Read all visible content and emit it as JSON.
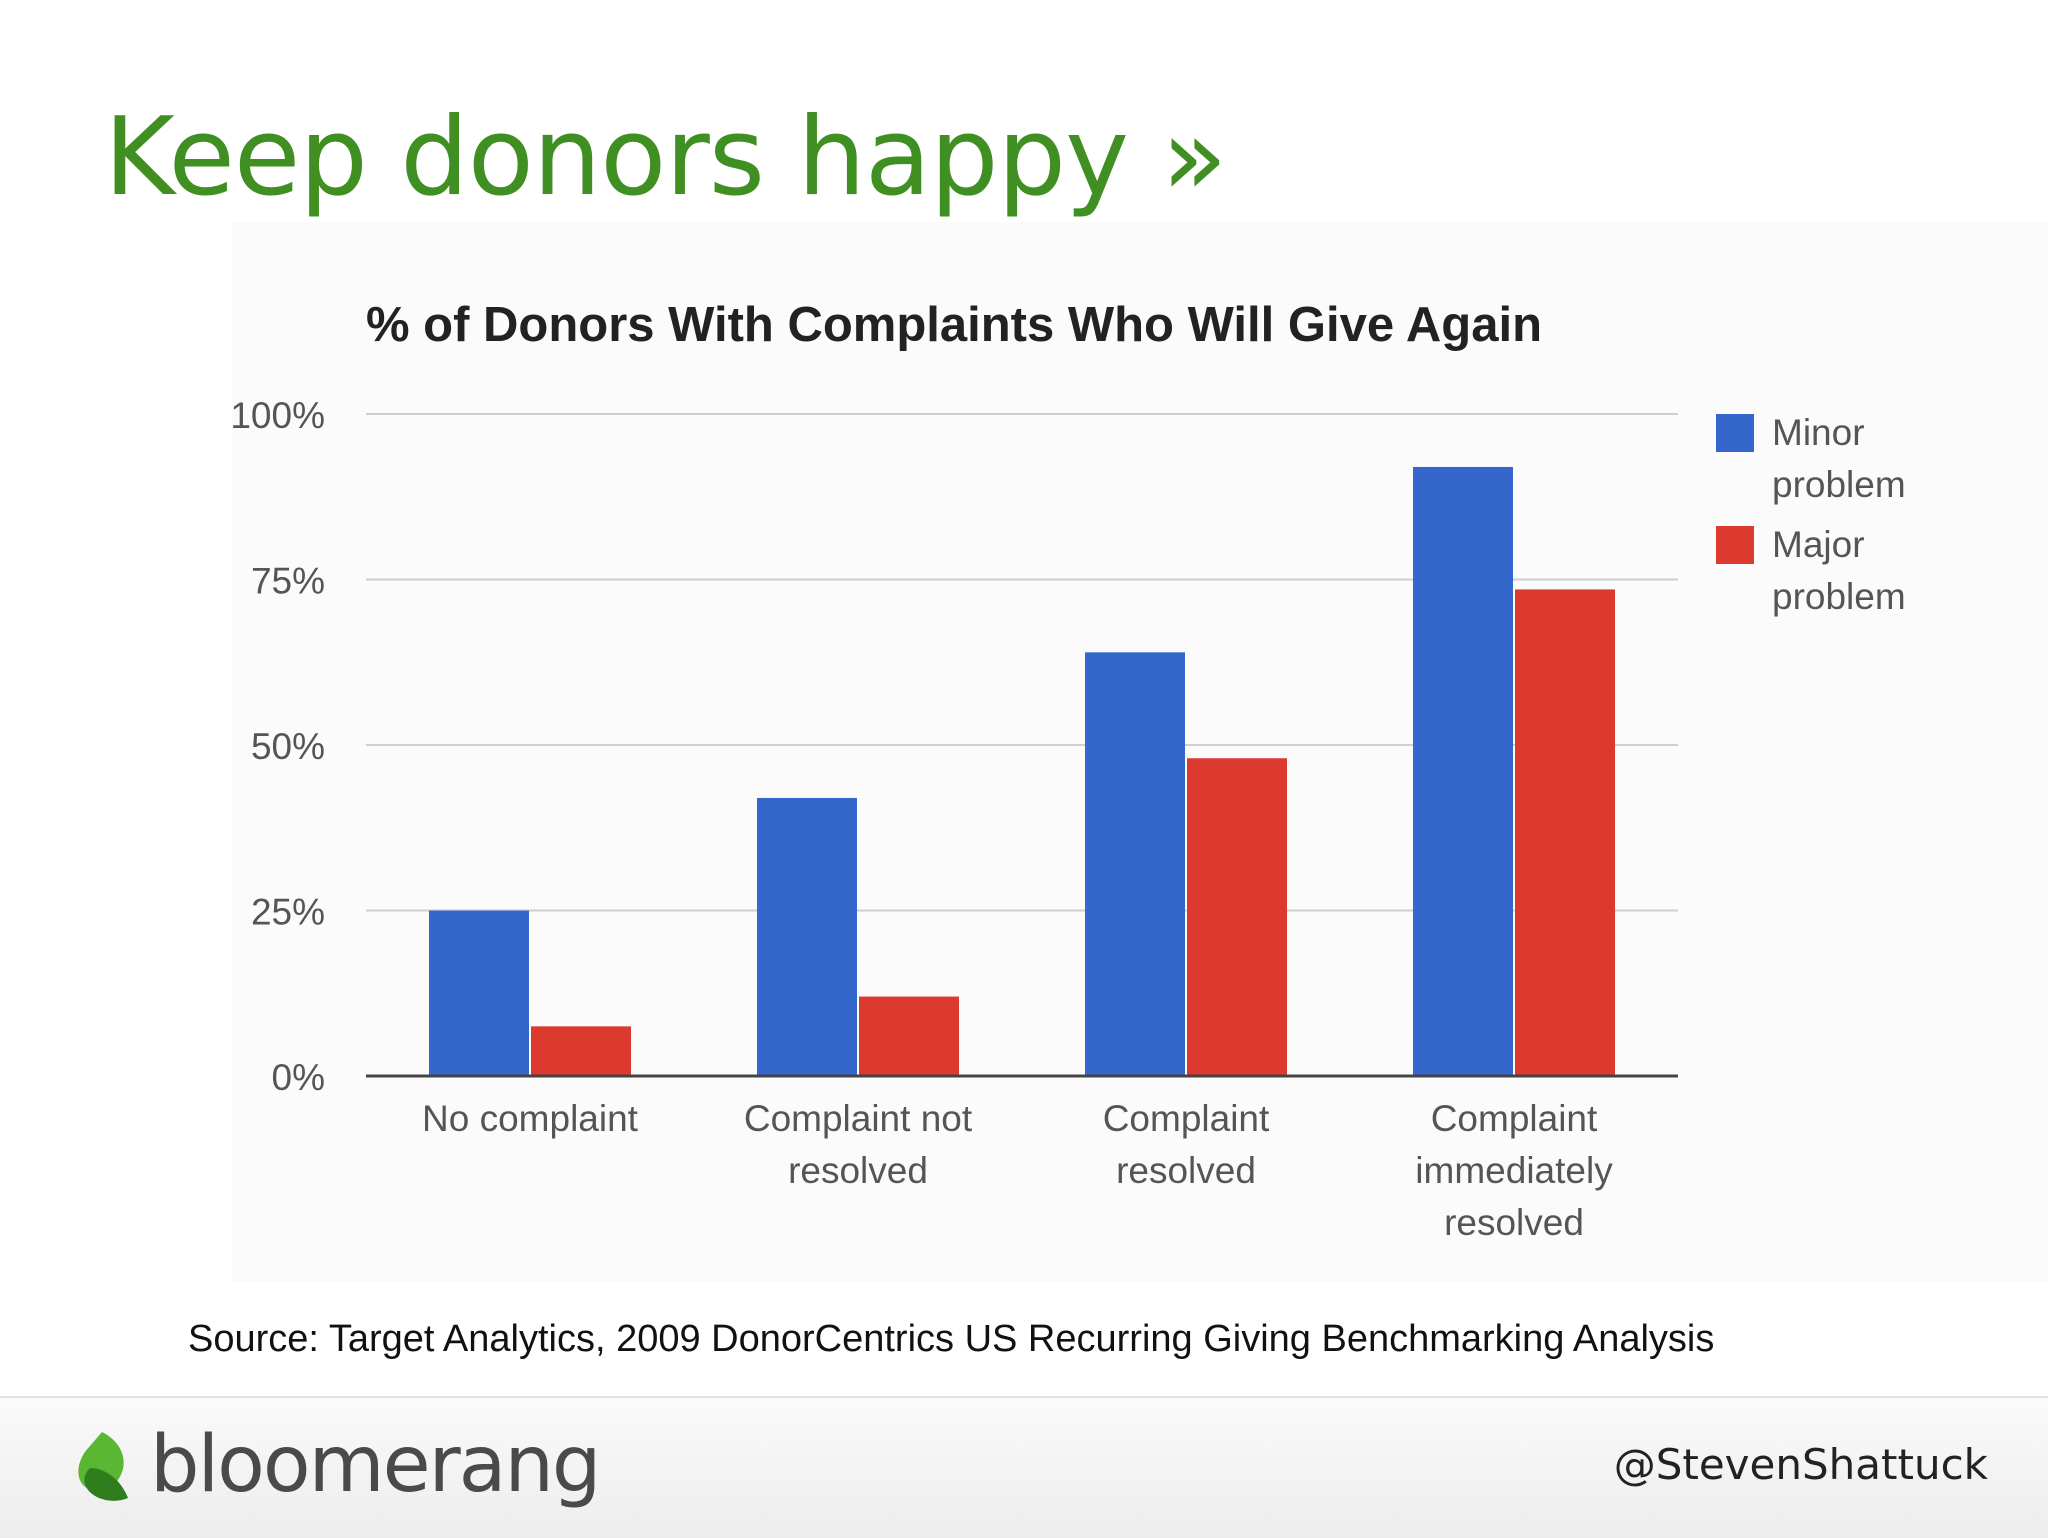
{
  "slide": {
    "title": "Keep donors happy »",
    "source": "Source: Target Analytics, 2009 DonorCentrics US Recurring Giving Benchmarking Analysis",
    "brand": "bloomerang",
    "handle": "@StevenShattuck"
  },
  "colors": {
    "title": "#3f8f22",
    "minor": "#3466cc",
    "major": "#dc3a2f"
  },
  "chart_data": {
    "type": "bar",
    "title": "% of Donors With Complaints Who Will Give Again",
    "categories": [
      [
        "No complaint"
      ],
      [
        "Complaint not",
        "resolved"
      ],
      [
        "Complaint",
        "resolved"
      ],
      [
        "Complaint",
        "immediately",
        "resolved"
      ]
    ],
    "series": [
      {
        "name": "Minor problem",
        "legend_lines": [
          "Minor",
          "problem"
        ],
        "color": "#3466cc",
        "values": [
          25,
          42,
          64,
          92
        ]
      },
      {
        "name": "Major problem",
        "legend_lines": [
          "Major",
          "problem"
        ],
        "color": "#dc3a2f",
        "values": [
          7.5,
          12,
          48,
          73.5
        ]
      }
    ],
    "y_ticks": [
      "0%",
      "25%",
      "50%",
      "75%",
      "100%"
    ],
    "ylim": [
      0,
      100
    ],
    "grid": true,
    "legend": "right"
  }
}
